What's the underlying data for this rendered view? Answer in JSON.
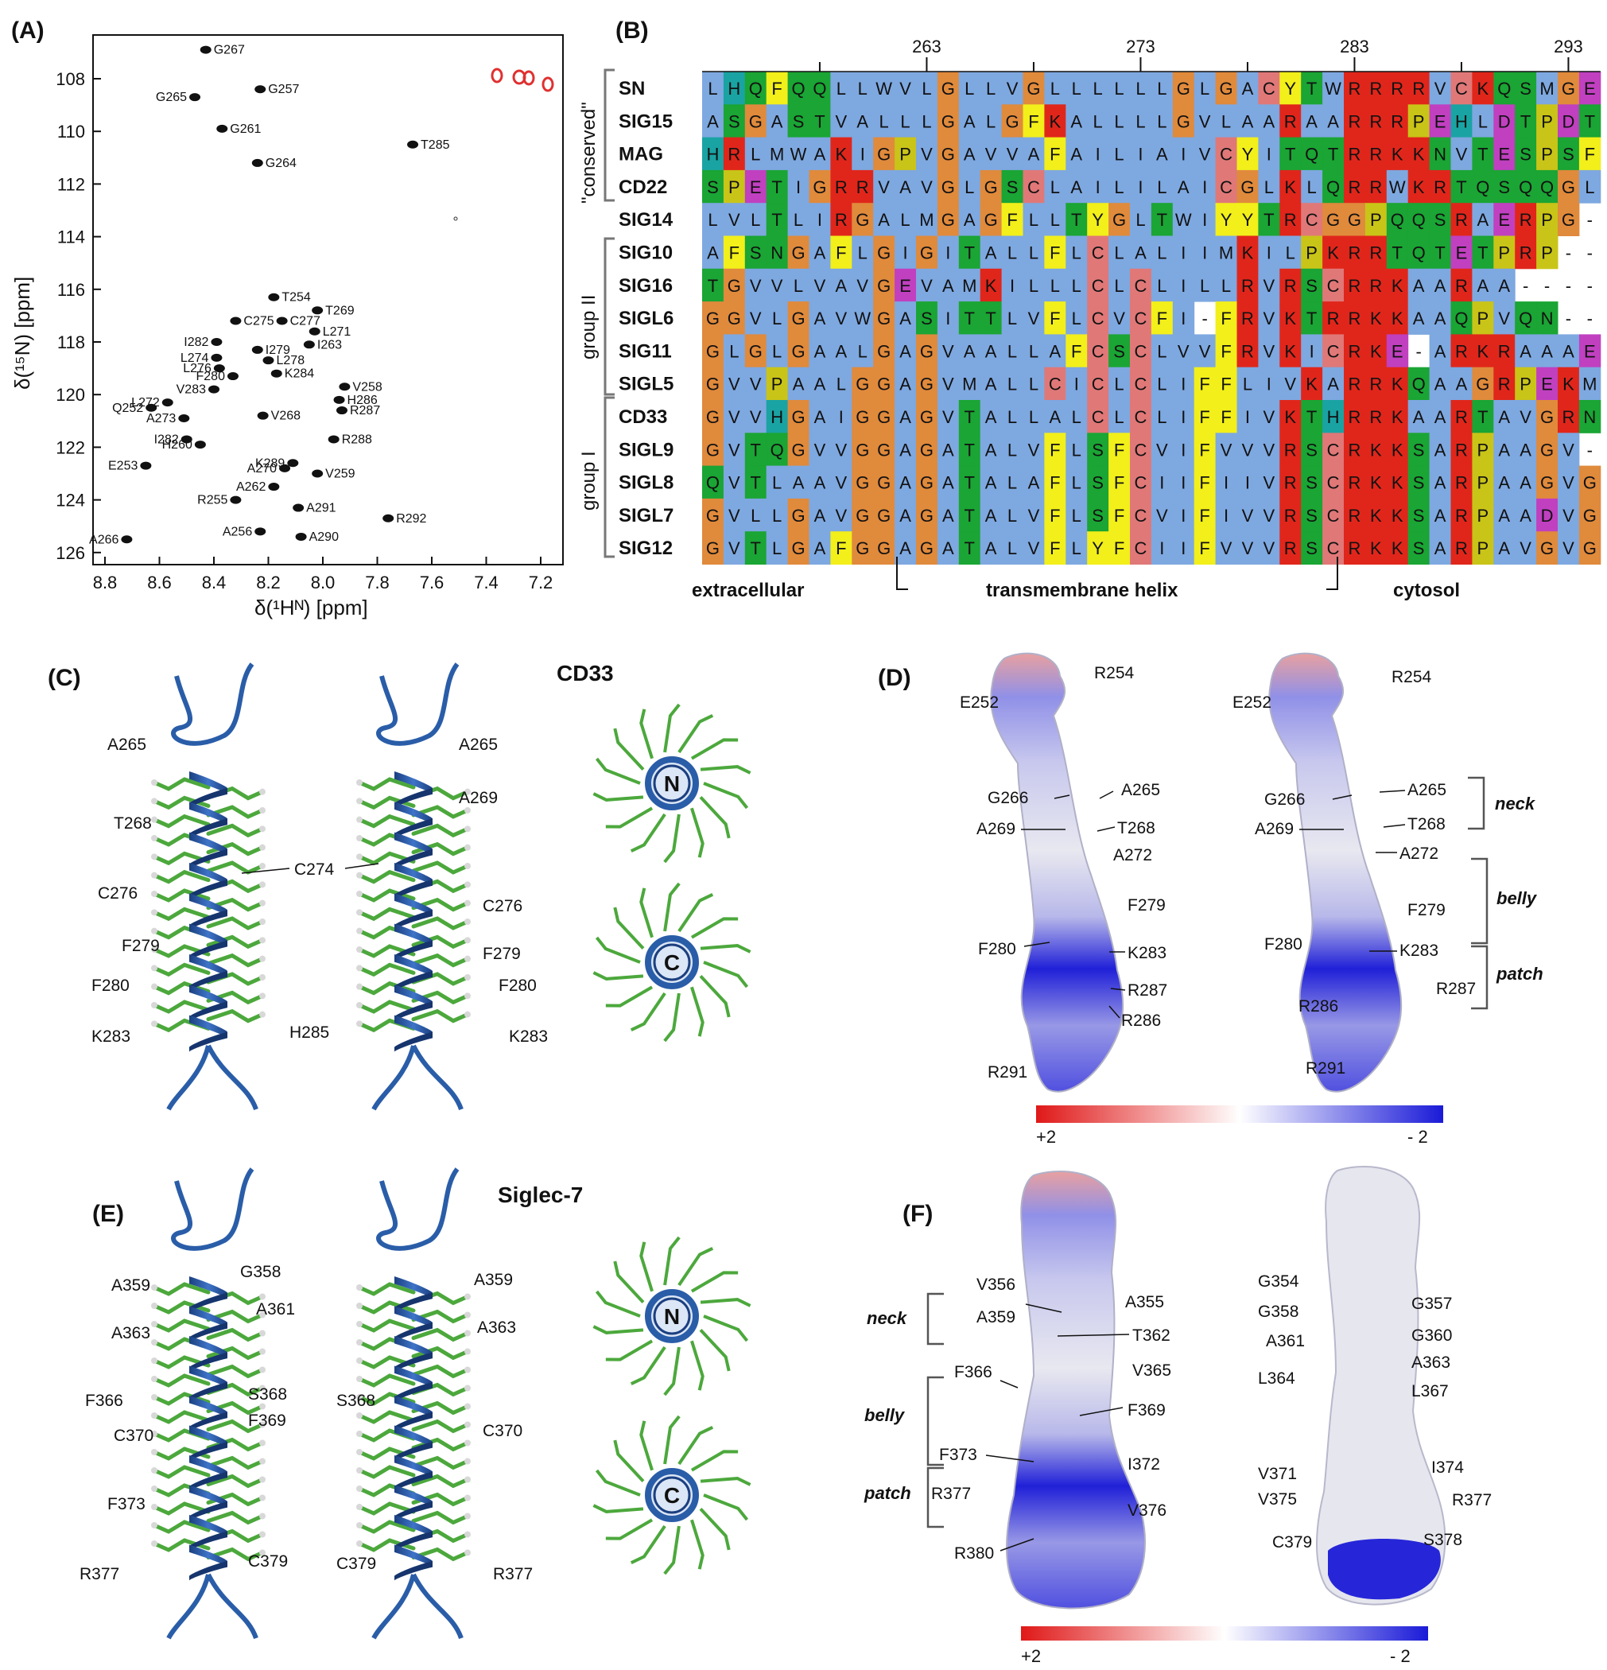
{
  "panel_labels": {
    "a": "(A)",
    "b": "(B)",
    "c": "(C)",
    "d": "(D)",
    "e": "(E)",
    "f": "(F)"
  },
  "nmr": {
    "xlabel": "δ(¹Hᴺ) [ppm]",
    "ylabel": "δ(¹⁵N) [ppm]",
    "xticks": [
      "8.8",
      "8.6",
      "8.4",
      "8.2",
      "8.0",
      "7.8",
      "7.6",
      "7.4",
      "7.2"
    ],
    "yticks": [
      "108",
      "110",
      "112",
      "114",
      "116",
      "118",
      "120",
      "122",
      "124",
      "126"
    ],
    "peaks": [
      {
        "label": "G267",
        "h": 8.43,
        "n": 106.9
      },
      {
        "label": "G257",
        "h": 8.23,
        "n": 108.4
      },
      {
        "label": "G265",
        "h": 8.47,
        "n": 108.7
      },
      {
        "label": "G261",
        "h": 8.37,
        "n": 109.9
      },
      {
        "label": "T285",
        "h": 7.67,
        "n": 110.5
      },
      {
        "label": "G264",
        "h": 8.24,
        "n": 111.2
      },
      {
        "label": "T254",
        "h": 8.18,
        "n": 116.3
      },
      {
        "label": "T269",
        "h": 8.02,
        "n": 116.8
      },
      {
        "label": "C275",
        "h": 8.32,
        "n": 117.2
      },
      {
        "label": "C277",
        "h": 8.15,
        "n": 117.2
      },
      {
        "label": "L271",
        "h": 8.03,
        "n": 117.6
      },
      {
        "label": "I282",
        "h": 8.39,
        "n": 118.0
      },
      {
        "label": "I263",
        "h": 8.05,
        "n": 118.1
      },
      {
        "label": "I279",
        "h": 8.24,
        "n": 118.3
      },
      {
        "label": "L274",
        "h": 8.39,
        "n": 118.6
      },
      {
        "label": "L278",
        "h": 8.2,
        "n": 118.7
      },
      {
        "label": "L276",
        "h": 8.38,
        "n": 119.0
      },
      {
        "label": "F280",
        "h": 8.33,
        "n": 119.3
      },
      {
        "label": "K284",
        "h": 8.17,
        "n": 119.2
      },
      {
        "label": "V258",
        "h": 7.92,
        "n": 119.7
      },
      {
        "label": "V283",
        "h": 8.4,
        "n": 119.8
      },
      {
        "label": "H286",
        "h": 7.94,
        "n": 120.2
      },
      {
        "label": "L272",
        "h": 8.57,
        "n": 120.3
      },
      {
        "label": "Q252",
        "h": 8.63,
        "n": 120.5
      },
      {
        "label": "R287",
        "h": 7.93,
        "n": 120.6
      },
      {
        "label": "A273",
        "h": 8.51,
        "n": 120.9
      },
      {
        "label": "V268",
        "h": 8.22,
        "n": 120.8
      },
      {
        "label": "I282",
        "h": 8.5,
        "n": 121.7
      },
      {
        "label": "H260",
        "h": 8.45,
        "n": 121.9
      },
      {
        "label": "R288",
        "h": 7.96,
        "n": 121.7
      },
      {
        "label": "K289",
        "h": 8.11,
        "n": 122.6
      },
      {
        "label": "A270",
        "h": 8.14,
        "n": 122.8
      },
      {
        "label": "E253",
        "h": 8.65,
        "n": 122.7
      },
      {
        "label": "V259",
        "h": 8.02,
        "n": 123.0
      },
      {
        "label": "A262",
        "h": 8.18,
        "n": 123.5
      },
      {
        "label": "R255",
        "h": 8.32,
        "n": 124.0
      },
      {
        "label": "A291",
        "h": 8.09,
        "n": 124.3
      },
      {
        "label": "R292",
        "h": 7.76,
        "n": 124.7
      },
      {
        "label": "A256",
        "h": 8.23,
        "n": 125.2
      },
      {
        "label": "A266",
        "h": 8.72,
        "n": 125.5
      },
      {
        "label": "A290",
        "h": 8.08,
        "n": 125.4
      }
    ]
  },
  "alignment": {
    "positions": [
      "263",
      "273",
      "283",
      "293"
    ],
    "rows": [
      {
        "name": "SN",
        "seq": "LHQFQQLLWVLGLLVGLLLLLLGLGACYTWRRRRVCKQSMGE"
      },
      {
        "name": "SIG15",
        "seq": "ASGASTVALLLGALGFKALLLLGVLAARAARRRPEHLDTPDT"
      },
      {
        "name": "MAG",
        "seq": "HRLMWAKIGPVGAVVAFAILIAIVCYITQTRRKKNVTESPSF"
      },
      {
        "name": "CD22",
        "seq": "SPETIGRRVAVGLGSCLAILILAICGLKLQRRWKRTQSQQGL"
      },
      {
        "name": "SIG14",
        "seq": "LVLTLIRGALMGAGFLLTYGLTWIYYTRCGGPQQSRAERPG-"
      },
      {
        "name": "SIG10",
        "seq": "AFSNGAFLGIGITALLFLCLALIIMKILPKRRTQTETPRP--"
      },
      {
        "name": "SIG16",
        "seq": "TGVVLVAVGEVAMKILLLCLCLILLRVRSCRRKAARAA----"
      },
      {
        "name": "SIGL6",
        "seq": "GGVLGAVWGASITTLVFLCVCFI-FRVKTRRKKAAQPVQN--"
      },
      {
        "name": "SIG11",
        "seq": "GLGLGAALGAGVAALLAFCSCLVVFRVKICRKE-ARKRAAAE"
      },
      {
        "name": "SIGL5",
        "seq": "GVVPAALGGAGVMALLCICLCLIFFLIVKARRKQAAGRPEKM"
      },
      {
        "name": "CD33",
        "seq": "GVVHGAIGGAGVTALLALCLCLIFFIVKTHRRKAARTAVGRN"
      },
      {
        "name": "SIGL9",
        "seq": "GVTQGVVGGAGATALVFLSFCVIFVVVRSCRKKSARPAAGV-"
      },
      {
        "name": "SIGL8",
        "seq": "QVTLAAVGGAGATALAFLSFCIIFIIVRSCRKKSARPAAGVG"
      },
      {
        "name": "SIGL7",
        "seq": "GVLLGAVGGAGATALVFLSFCVIFIVVRSCRKKSARPAADVG"
      },
      {
        "name": "SIG12",
        "seq": "GVTLGAFGGAGATALVFLYFCIIFVVVRSCRKKSARPAVGVG"
      }
    ],
    "groups": [
      "\"conserved\"",
      "group II",
      "group I"
    ],
    "regions": [
      "extracellular",
      "transmembrane helix",
      "cytosol"
    ]
  },
  "cd33": {
    "title": "CD33",
    "left": [
      "A265",
      "T268",
      "C276",
      "F279",
      "F280",
      "K283"
    ],
    "mid": [
      "C274",
      "H285"
    ],
    "right": [
      "A265",
      "A269",
      "C276",
      "F279",
      "F280",
      "K283"
    ],
    "top_end": "N",
    "bottom_end": "C"
  },
  "cd33_surface": {
    "left": [
      "R254",
      "E252",
      "G266",
      "A265",
      "A269",
      "T268",
      "A272",
      "F279",
      "F280",
      "K283",
      "R287",
      "R286",
      "R291"
    ],
    "right": [
      "R254",
      "E252",
      "G266",
      "A265",
      "A269",
      "T268",
      "A272",
      "F279",
      "F280",
      "K283",
      "R286",
      "R287",
      "R291"
    ],
    "regions": [
      "neck",
      "belly",
      "patch"
    ],
    "scale_left": "+2",
    "scale_right": "- 2"
  },
  "siglec7": {
    "title": "Siglec-7",
    "left": [
      "A359",
      "G358",
      "A361",
      "A363",
      "F366",
      "S368",
      "F369",
      "C370",
      "F373",
      "R377",
      "C379"
    ],
    "right": [
      "A359",
      "A363",
      "S368",
      "C370",
      "C379",
      "R377"
    ],
    "top_end": "N",
    "bottom_end": "C"
  },
  "siglec7_surface": {
    "left": [
      "V356",
      "A355",
      "A359",
      "T362",
      "V365",
      "F366",
      "F369",
      "I372",
      "F373",
      "V376",
      "R377",
      "R380"
    ],
    "right": [
      "G354",
      "G357",
      "G358",
      "G360",
      "A361",
      "A363",
      "L364",
      "L367",
      "V371",
      "I374",
      "V375",
      "R377",
      "C379",
      "S378"
    ],
    "regions": [
      "neck",
      "belly",
      "patch"
    ],
    "scale_left": "+2",
    "scale_right": "- 2"
  },
  "colors": {
    "hydrophobic": "#7ea8e0",
    "glycine": "#e08a3c",
    "basic": "#e0261b",
    "polar": "#1aa534",
    "cysteine": "#e07878",
    "aromatic": "#f2ef1a",
    "proline": "#c9c418",
    "histidine": "#1aa3a3",
    "acidic": "#c040c0",
    "helix": "#2a5da8",
    "stick": "#4ca83c"
  }
}
